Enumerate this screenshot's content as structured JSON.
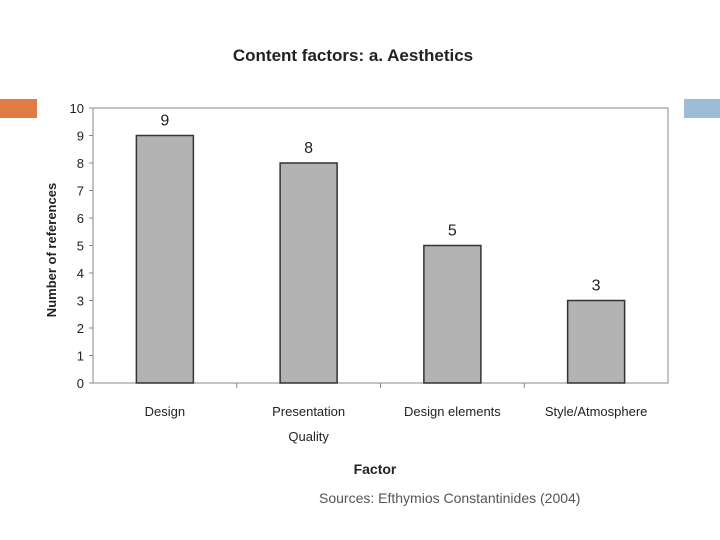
{
  "slide": {
    "source_text": "Sources: Efthymios Constantinides (2004)",
    "accent_left_color": "#e07b45",
    "accent_right_color": "#9dbcd6"
  },
  "chart_data": {
    "type": "bar",
    "title": "Content factors: a. Aesthetics",
    "xlabel": "Factor",
    "ylabel": "Number of references",
    "categories": [
      [
        "Design"
      ],
      [
        "Presentation",
        "Quality"
      ],
      [
        "Design elements"
      ],
      [
        "Style/Atmosphere"
      ]
    ],
    "values": [
      9,
      8,
      5,
      3
    ],
    "ylim": [
      0,
      10
    ],
    "yticks": [
      0,
      1,
      2,
      3,
      4,
      5,
      6,
      7,
      8,
      9,
      10
    ],
    "grid": false,
    "legend": "none",
    "bar_color": "#b3b3b3"
  }
}
